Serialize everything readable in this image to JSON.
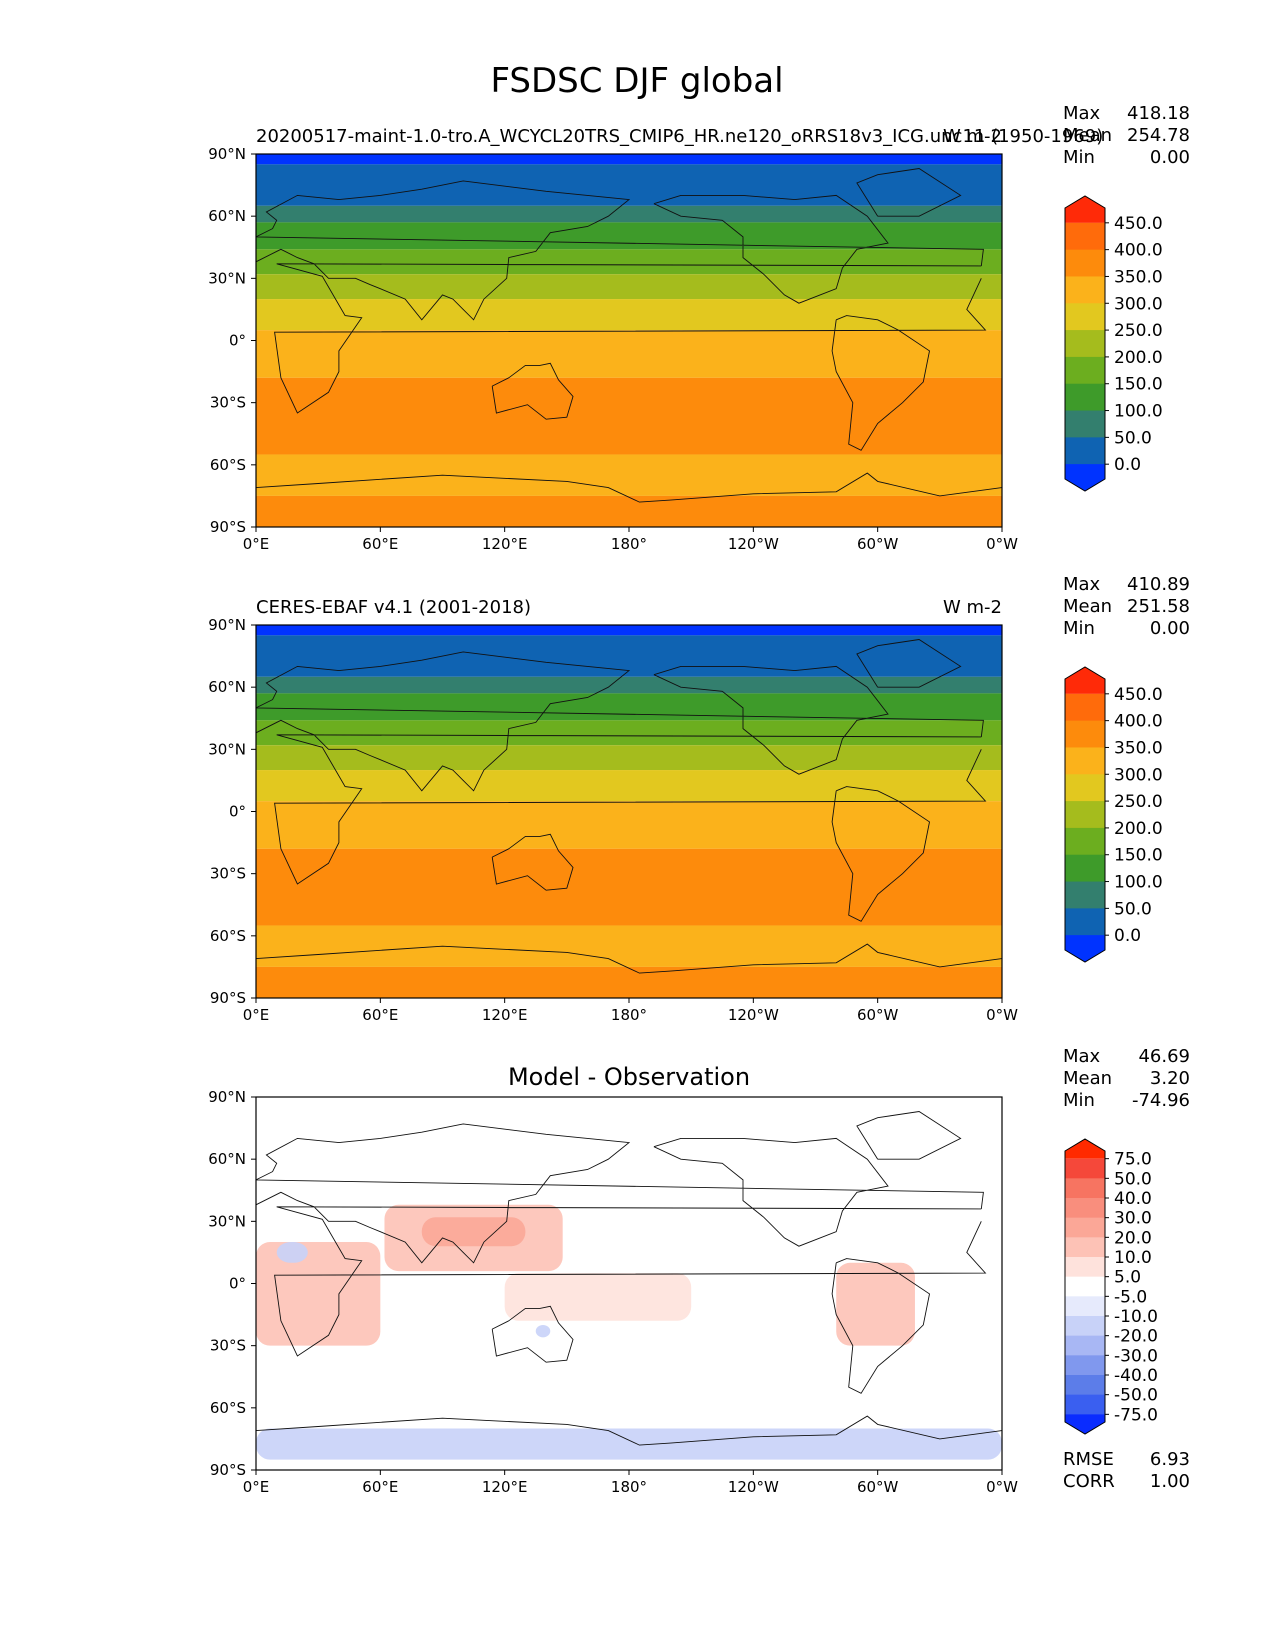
{
  "figure": {
    "title": "FSDSC DJF global"
  },
  "x_ticks": [
    "0°E",
    "60°E",
    "120°E",
    "180°",
    "120°W",
    "60°W",
    "0°W"
  ],
  "y_ticks": [
    "90°N",
    "60°N",
    "30°N",
    "0°",
    "30°S",
    "60°S",
    "90°S"
  ],
  "stat_labels": {
    "max": "Max",
    "mean": "Mean",
    "min": "Min",
    "rmse": "RMSE",
    "corr": "CORR"
  },
  "panels": [
    {
      "id": "model",
      "title_left": "20200517-maint-1.0-tro.A_WCYCL20TRS_CMIP6_HR.ne120_oRRS18v3_ICG.unc11 (1950-1969)",
      "title_right": "W m-2",
      "title_center": "",
      "stats": {
        "max": "418.18",
        "mean": "254.78",
        "min": "0.00"
      }
    },
    {
      "id": "obs",
      "title_left": "CERES-EBAF v4.1 (2001-2018)",
      "title_right": "W m-2",
      "title_center": "",
      "stats": {
        "max": "410.89",
        "mean": "251.58",
        "min": "0.00"
      }
    },
    {
      "id": "diff",
      "title_left": "",
      "title_right": "",
      "title_center": "Model - Observation",
      "stats": {
        "max": "46.69",
        "mean": "3.20",
        "min": "-74.96",
        "rmse": "6.93",
        "corr": "1.00"
      }
    }
  ],
  "colorbars": {
    "field": {
      "labels": [
        "450.0",
        "400.0",
        "350.0",
        "300.0",
        "250.0",
        "200.0",
        "150.0",
        "100.0",
        "50.0",
        "0.0"
      ],
      "colors": [
        "#ff2a08",
        "#ff6b0b",
        "#fd8b0c",
        "#fbb21b",
        "#e2c81f",
        "#a5bc1d",
        "#6cae1f",
        "#3e9b2a",
        "#337f6e",
        "#0f63b2",
        "#0033ff"
      ]
    },
    "diff": {
      "labels": [
        "75.0",
        "50.0",
        "40.0",
        "30.0",
        "20.0",
        "10.0",
        "5.0",
        "-5.0",
        "-10.0",
        "-20.0",
        "-30.0",
        "-40.0",
        "-50.0",
        "-75.0"
      ],
      "colors": [
        "#ff2a00",
        "#f5483a",
        "#f77461",
        "#f98e7d",
        "#fba797",
        "#fdc2b6",
        "#fee2dc",
        "#ffffff",
        "#e6eafc",
        "#c8d2f8",
        "#a8b7f4",
        "#8098ee",
        "#5c7de9",
        "#3a5ff0",
        "#0a2cff"
      ]
    }
  },
  "chart_data": [
    {
      "type": "heatmap",
      "title": "20200517-maint-1.0-tro.A_WCYCL20TRS_CMIP6_HR.ne120_oRRS18v3_ICG.unc11 (1950-1969)",
      "units": "W m-2",
      "xlim": [
        0,
        360
      ],
      "ylim": [
        -90,
        90
      ],
      "levels": [
        0,
        50,
        100,
        150,
        200,
        250,
        300,
        350,
        400,
        450
      ],
      "zonal_bands": [
        {
          "lat": [
            85,
            90
          ],
          "value": -1
        },
        {
          "lat": [
            65,
            85
          ],
          "value": 25
        },
        {
          "lat": [
            57,
            65
          ],
          "value": 75
        },
        {
          "lat": [
            44,
            57
          ],
          "value": 125
        },
        {
          "lat": [
            32,
            44
          ],
          "value": 175
        },
        {
          "lat": [
            20,
            32
          ],
          "value": 225
        },
        {
          "lat": [
            5,
            20
          ],
          "value": 275
        },
        {
          "lat": [
            -18,
            5
          ],
          "value": 325
        },
        {
          "lat": [
            -55,
            -18
          ],
          "value": 375
        },
        {
          "lat": [
            -75,
            -55
          ],
          "value": 325
        },
        {
          "lat": [
            -90,
            -75
          ],
          "value": 375
        }
      ]
    },
    {
      "type": "heatmap",
      "title": "CERES-EBAF v4.1 (2001-2018)",
      "units": "W m-2",
      "xlim": [
        0,
        360
      ],
      "ylim": [
        -90,
        90
      ],
      "levels": [
        0,
        50,
        100,
        150,
        200,
        250,
        300,
        350,
        400,
        450
      ],
      "zonal_bands": [
        {
          "lat": [
            85,
            90
          ],
          "value": -1
        },
        {
          "lat": [
            65,
            85
          ],
          "value": 25
        },
        {
          "lat": [
            57,
            65
          ],
          "value": 75
        },
        {
          "lat": [
            44,
            57
          ],
          "value": 125
        },
        {
          "lat": [
            32,
            44
          ],
          "value": 175
        },
        {
          "lat": [
            20,
            32
          ],
          "value": 225
        },
        {
          "lat": [
            5,
            20
          ],
          "value": 275
        },
        {
          "lat": [
            -18,
            5
          ],
          "value": 325
        },
        {
          "lat": [
            -55,
            -18
          ],
          "value": 375
        },
        {
          "lat": [
            -75,
            -55
          ],
          "value": 325
        },
        {
          "lat": [
            -90,
            -75
          ],
          "value": 375
        }
      ]
    },
    {
      "type": "heatmap",
      "title": "Model - Observation",
      "xlim": [
        0,
        360
      ],
      "ylim": [
        -90,
        90
      ],
      "levels": [
        -75,
        -50,
        -40,
        -30,
        -20,
        -10,
        -5,
        5,
        10,
        20,
        30,
        40,
        50,
        75
      ],
      "regions": [
        {
          "lon": [
            62,
            148
          ],
          "lat": [
            6,
            38
          ],
          "value": 15
        },
        {
          "lon": [
            80,
            130
          ],
          "lat": [
            18,
            32
          ],
          "value": 25
        },
        {
          "lon": [
            0,
            60
          ],
          "lat": [
            -30,
            20
          ],
          "value": 12
        },
        {
          "lon": [
            120,
            210
          ],
          "lat": [
            -18,
            5
          ],
          "value": 8
        },
        {
          "lon": [
            280,
            318
          ],
          "lat": [
            -30,
            10
          ],
          "value": 15
        },
        {
          "lon": [
            0,
            360
          ],
          "lat": [
            -85,
            -70
          ],
          "value": -12
        },
        {
          "lon": [
            10,
            25
          ],
          "lat": [
            10,
            20
          ],
          "value": -15
        },
        {
          "lon": [
            135,
            142
          ],
          "lat": [
            -26,
            -20
          ],
          "value": -15
        }
      ]
    }
  ]
}
